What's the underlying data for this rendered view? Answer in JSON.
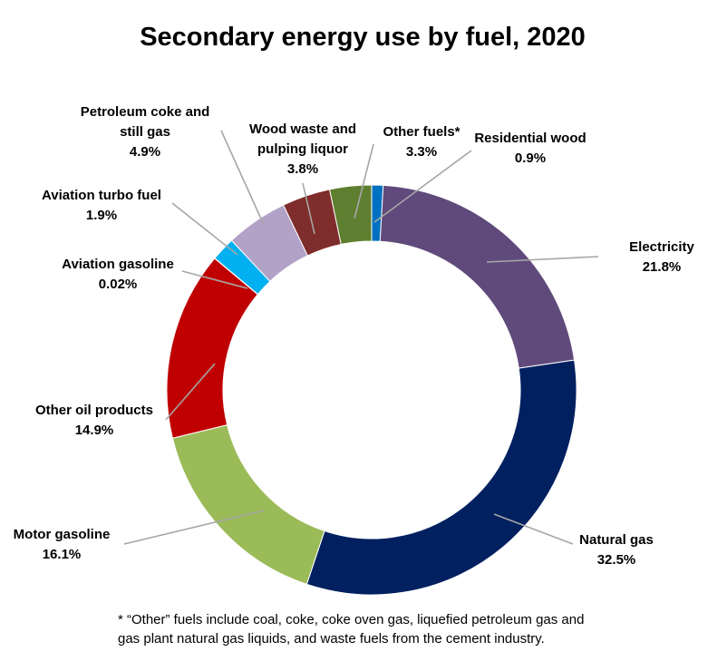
{
  "chart_data": {
    "type": "pie",
    "title": "Secondary energy use by fuel, 2020",
    "categories": [
      "Residential wood",
      "Electricity",
      "Natural gas",
      "Motor gasoline",
      "Other oil products",
      "Aviation gasoline",
      "Aviation turbo fuel",
      "Petroleum coke and still gas",
      "Wood waste and pulping liquor",
      "Other fuels*"
    ],
    "values": [
      0.9,
      21.8,
      32.5,
      16.1,
      14.9,
      0.02,
      1.9,
      4.9,
      3.8,
      3.3
    ],
    "value_labels": [
      "0.9%",
      "21.8%",
      "32.5%",
      "16.1%",
      "14.9%",
      "0.02%",
      "1.9%",
      "4.9%",
      "3.8%",
      "3.3%"
    ],
    "colors": [
      "#0070c0",
      "#604a7b",
      "#002060",
      "#9bbb59",
      "#c00000",
      "#4f81bd",
      "#00b0f0",
      "#b3a2c7",
      "#7f2c2c",
      "#5f7f30"
    ],
    "legend": "none",
    "footnote": [
      "* “Other” fuels include coal, coke, coke oven gas, liquefied petroleum gas and",
      "gas plant natural gas liquids, and waste fuels from the cement industry."
    ]
  }
}
